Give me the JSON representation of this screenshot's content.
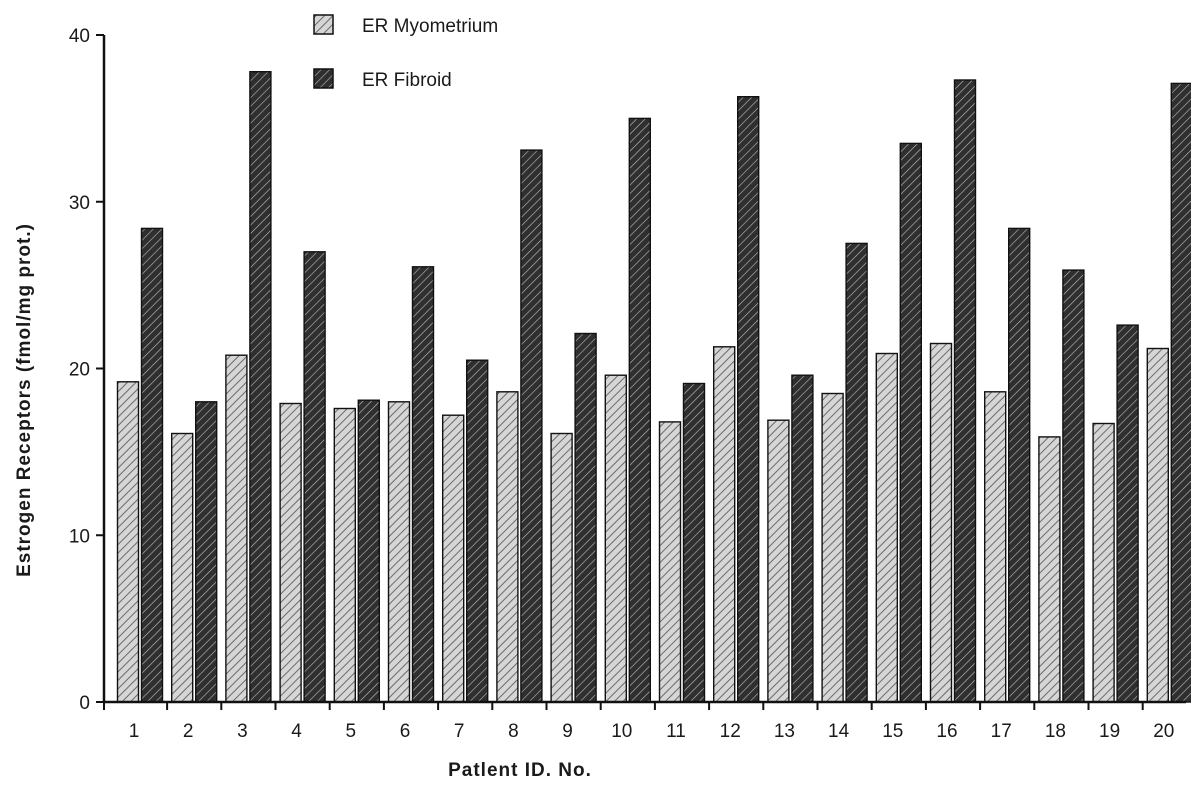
{
  "chart_data": {
    "type": "bar",
    "title": "",
    "xlabel": "Patlent ID. No.",
    "ylabel": "Estrogen Receptors (fmol/mg prot.)",
    "ylim": [
      0,
      40
    ],
    "yticks": [
      0,
      10,
      20,
      30,
      40
    ],
    "categories": [
      "1",
      "2",
      "3",
      "4",
      "5",
      "6",
      "7",
      "8",
      "9",
      "10",
      "11",
      "12",
      "13",
      "14",
      "15",
      "16",
      "17",
      "18",
      "19",
      "20"
    ],
    "series": [
      {
        "name": "ER Myometrium",
        "values": [
          19.2,
          16.1,
          20.8,
          17.9,
          17.6,
          18.0,
          17.2,
          18.6,
          16.1,
          19.6,
          16.8,
          21.3,
          16.9,
          18.5,
          20.9,
          21.5,
          18.6,
          15.9,
          16.7,
          21.2
        ]
      },
      {
        "name": "ER Fibroid",
        "values": [
          28.4,
          18.0,
          37.8,
          27.0,
          18.1,
          26.1,
          20.5,
          33.1,
          22.1,
          35.0,
          19.1,
          36.3,
          19.6,
          27.5,
          33.5,
          37.3,
          28.4,
          25.9,
          22.6,
          37.1
        ]
      }
    ],
    "colors": {
      "myometrium_fill": "#cfcfcf",
      "fibroid_fill": "#2b2b2b",
      "stroke": "#111111"
    },
    "legend": "top-center",
    "grid": false
  }
}
